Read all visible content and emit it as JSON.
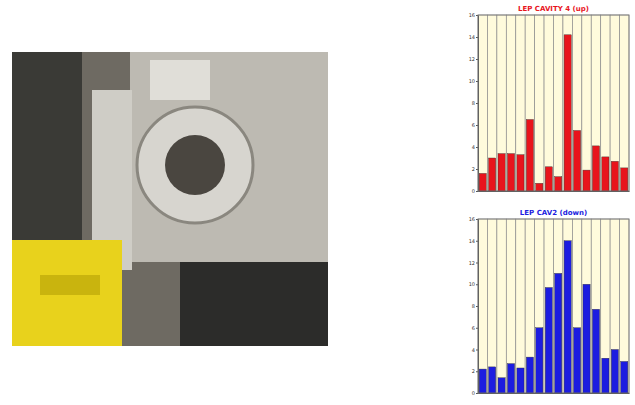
{
  "chart_data": [
    {
      "type": "bar",
      "title": "LEP CAVITY 4 (up)",
      "categories": [
        null,
        null,
        null,
        null,
        null,
        null,
        null,
        null,
        null,
        null,
        null,
        null,
        null,
        null,
        null,
        null
      ],
      "values": [
        1.6,
        3.0,
        3.4,
        3.4,
        3.3,
        6.5,
        0.7,
        2.2,
        1.3,
        14.2,
        5.5,
        1.9,
        4.1,
        3.1,
        2.7,
        2.1
      ],
      "color": "#e8141c",
      "ylim": [
        0,
        16
      ],
      "yticks": [
        0,
        2,
        4,
        6,
        8,
        10,
        12,
        14,
        16
      ]
    },
    {
      "type": "bar",
      "title": "LEP CAV2 (down)",
      "categories": [
        null,
        null,
        null,
        null,
        null,
        null,
        null,
        null,
        null,
        null,
        null,
        null,
        null,
        null,
        null,
        null
      ],
      "values": [
        2.2,
        2.4,
        1.4,
        2.7,
        2.3,
        3.3,
        6.0,
        9.7,
        11.0,
        14.0,
        6.0,
        10.0,
        7.7,
        3.2,
        4.0,
        2.9
      ],
      "color": "#1c1ce0",
      "ylim": [
        0,
        16
      ],
      "yticks": [
        0,
        2,
        4,
        6,
        8,
        10,
        12,
        14,
        16
      ]
    }
  ]
}
